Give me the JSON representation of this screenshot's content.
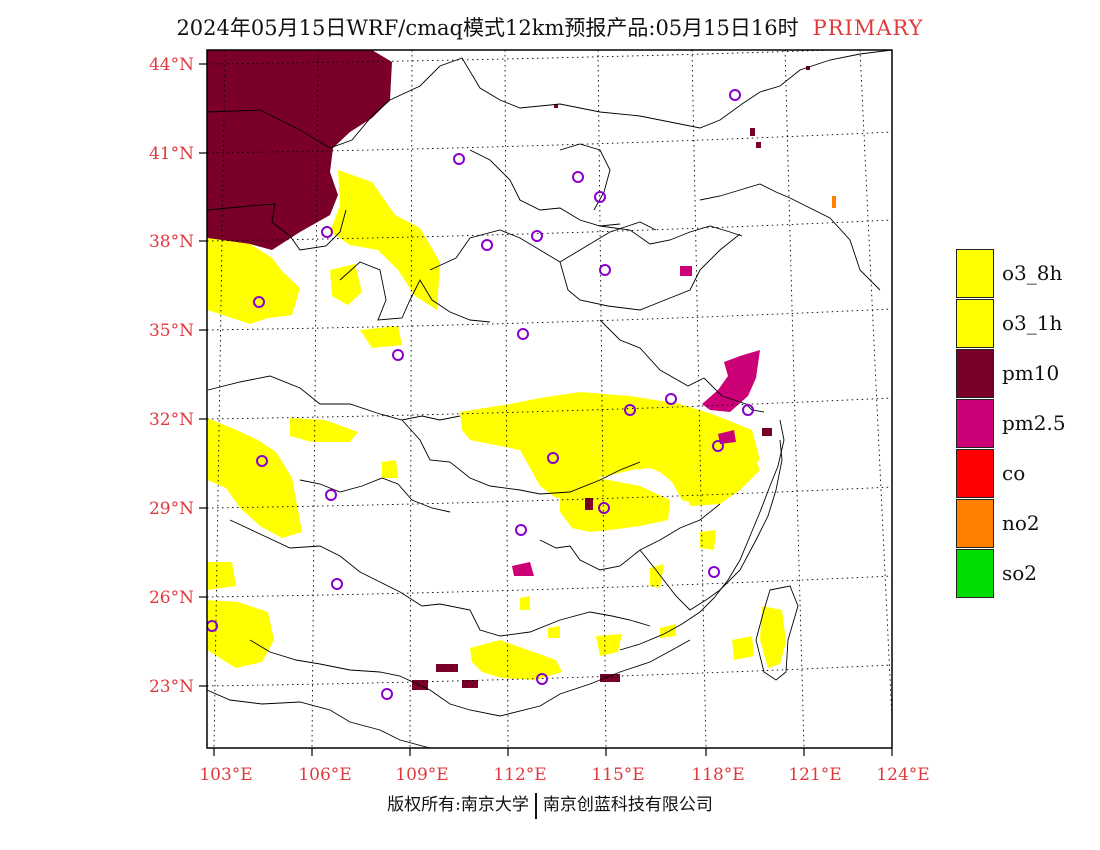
{
  "title": {
    "main": "2024年05月15日WRF/cmaq模式12km预报产品:05月15日16时",
    "tag": "PRIMARY"
  },
  "axes": {
    "latitudes": [
      "44°N",
      "41°N",
      "38°N",
      "35°N",
      "32°N",
      "29°N",
      "26°N",
      "23°N"
    ],
    "longitudes": [
      "103°E",
      "106°E",
      "109°E",
      "112°E",
      "115°E",
      "118°E",
      "121°E",
      "124°E"
    ]
  },
  "legend": [
    {
      "key": "o3_8h",
      "label": "o3_8h",
      "color": "#ffff00"
    },
    {
      "key": "o3_1h",
      "label": "o3_1h",
      "color": "#ffff00"
    },
    {
      "key": "pm10",
      "label": "pm10",
      "color": "#7a0028"
    },
    {
      "key": "pm25",
      "label": "pm2.5",
      "color": "#cc0077"
    },
    {
      "key": "co",
      "label": "co",
      "color": "#ff0000"
    },
    {
      "key": "no2",
      "label": "no2",
      "color": "#ff7f00"
    },
    {
      "key": "so2",
      "label": "so2",
      "color": "#00dd00"
    }
  ],
  "footer": {
    "left": "版权所有:南京大学",
    "right": "南京创蓝科技有限公司"
  },
  "colors": {
    "primary_tag": "#e03a3a",
    "axis_labels": "#e0393d",
    "station_marker": "#8800cc"
  }
}
